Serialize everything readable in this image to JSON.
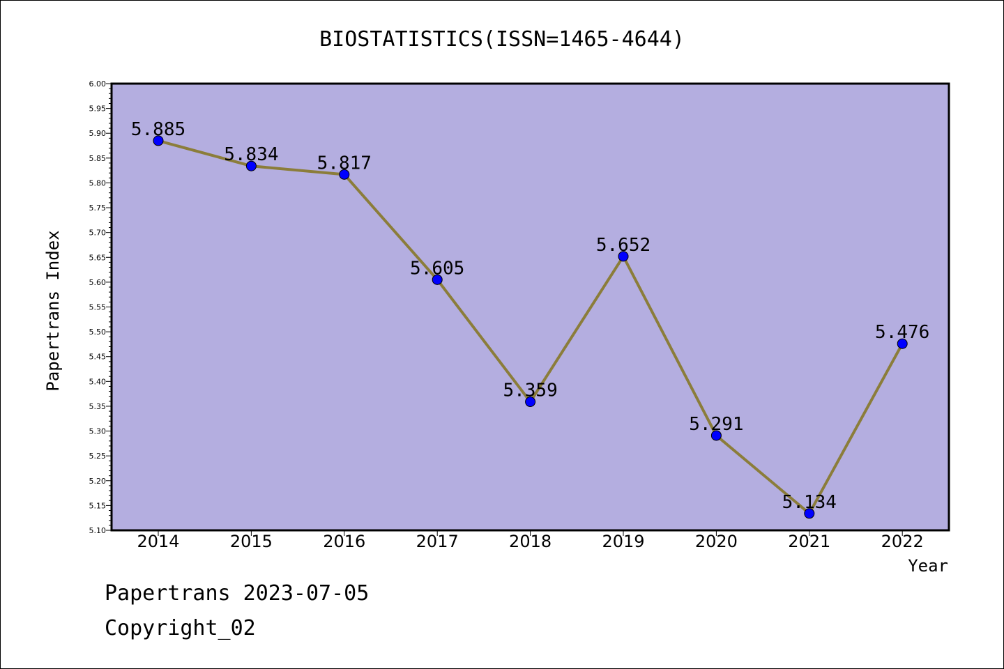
{
  "chart_data": {
    "type": "line",
    "title": "BIOSTATISTICS(ISSN=1465-4644)",
    "xlabel": "Year",
    "ylabel": "Papertrans Index",
    "categories": [
      "2014",
      "2015",
      "2016",
      "2017",
      "2018",
      "2019",
      "2020",
      "2021",
      "2022"
    ],
    "series": [
      {
        "values": [
          5.885,
          5.834,
          5.817,
          5.605,
          5.359,
          5.652,
          5.291,
          5.134,
          5.476
        ],
        "labels": [
          "5.885",
          "5.834",
          "5.817",
          "5.605",
          "5.359",
          "5.652",
          "5.291",
          "5.134",
          "5.476"
        ]
      }
    ],
    "ylim": [
      5.1,
      6.0
    ],
    "yticks": [
      "5.10",
      "5.15",
      "5.20",
      "5.25",
      "5.30",
      "5.35",
      "5.40",
      "5.45",
      "5.50",
      "5.55",
      "5.60",
      "5.65",
      "5.70",
      "5.75",
      "5.80",
      "5.85",
      "5.90",
      "5.95",
      "6.00"
    ],
    "grid": false,
    "colors": {
      "plot_background": "#b4aee0",
      "line": "#8b7d3a",
      "marker": "#0000ff"
    }
  },
  "footer": {
    "date_line": "Papertrans 2023-07-05",
    "copyright": "Copyright_02"
  }
}
